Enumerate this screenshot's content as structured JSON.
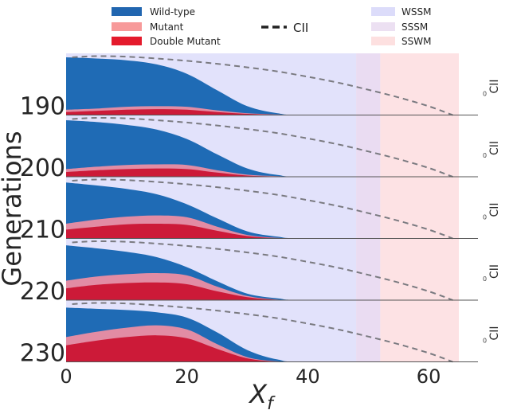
{
  "chart_data": {
    "type": "area",
    "title": "",
    "xlabel_main": "X",
    "xlabel_sub": "f",
    "ylabel": "Generations",
    "xlim": [
      0,
      65
    ],
    "x_ticks": [
      0,
      20,
      40,
      60
    ],
    "x_tick_labels": [
      "0",
      "20",
      "40",
      "60"
    ],
    "legend": {
      "placement": "top",
      "area_items": [
        {
          "label": "Wild-type",
          "color": "#2166b0"
        },
        {
          "label": "Mutant",
          "color": "#f79a9a"
        },
        {
          "label": "Double Mutant",
          "color": "#e41a2c"
        }
      ],
      "line_item": {
        "label": "CII",
        "color": "#222222"
      },
      "region_items": [
        {
          "label": "WSSM",
          "color": "#dcdcfa"
        },
        {
          "label": "SSSM",
          "color": "#ece0f2"
        },
        {
          "label": "SSWM",
          "color": "#fde0e0"
        }
      ]
    },
    "regimes": [
      {
        "name": "WSSM",
        "x_range": [
          0,
          48
        ],
        "color": "#e2e2fb"
      },
      {
        "name": "SSSM",
        "x_range": [
          48,
          52
        ],
        "color": "#eadcf2"
      },
      {
        "name": "SSWM",
        "x_range": [
          52,
          65
        ],
        "color": "#fde2e4"
      }
    ],
    "stack_colors": {
      "double_mutant": "#cc1a38",
      "mutant": "#e28ca4",
      "wild_type": "#1f6bb5"
    },
    "cii_line": {
      "label": "CII",
      "color": "#7a7a80",
      "style": "dashed",
      "axis_tick_label": "0",
      "x": [
        1,
        5,
        10,
        15,
        20,
        25,
        30,
        35,
        40,
        45,
        50,
        55,
        60,
        64
      ],
      "y": [
        0.98,
        1.0,
        0.99,
        0.96,
        0.92,
        0.87,
        0.81,
        0.74,
        0.65,
        0.55,
        0.43,
        0.3,
        0.15,
        0.0
      ]
    },
    "panels": [
      {
        "generation": "190",
        "x": [
          0,
          5,
          10,
          15,
          20,
          25,
          30,
          35,
          40,
          65
        ],
        "double_mutant": [
          0.05,
          0.07,
          0.09,
          0.1,
          0.09,
          0.05,
          0.02,
          0.005,
          0.0,
          0.0
        ],
        "mutant": [
          0.04,
          0.04,
          0.05,
          0.05,
          0.05,
          0.03,
          0.01,
          0.005,
          0.0,
          0.0
        ],
        "wild_type": [
          0.98,
          0.96,
          0.93,
          0.86,
          0.7,
          0.42,
          0.15,
          0.03,
          0.0,
          0.0
        ]
      },
      {
        "generation": "200",
        "x": [
          0,
          5,
          10,
          15,
          20,
          25,
          30,
          35,
          40,
          65
        ],
        "double_mutant": [
          0.08,
          0.11,
          0.13,
          0.14,
          0.13,
          0.07,
          0.02,
          0.005,
          0.0,
          0.0
        ],
        "mutant": [
          0.05,
          0.06,
          0.07,
          0.07,
          0.07,
          0.04,
          0.015,
          0.005,
          0.0,
          0.0
        ],
        "wild_type": [
          0.96,
          0.93,
          0.88,
          0.8,
          0.64,
          0.38,
          0.14,
          0.03,
          0.0,
          0.0
        ]
      },
      {
        "generation": "210",
        "x": [
          0,
          5,
          10,
          15,
          20,
          25,
          30,
          35,
          40,
          65
        ],
        "double_mutant": [
          0.15,
          0.2,
          0.24,
          0.25,
          0.23,
          0.13,
          0.04,
          0.005,
          0.0,
          0.0
        ],
        "mutant": [
          0.1,
          0.12,
          0.13,
          0.14,
          0.13,
          0.07,
          0.02,
          0.005,
          0.0,
          0.0
        ],
        "wild_type": [
          0.95,
          0.9,
          0.84,
          0.75,
          0.58,
          0.34,
          0.12,
          0.03,
          0.0,
          0.0
        ]
      },
      {
        "generation": "220",
        "x": [
          0,
          5,
          10,
          15,
          20,
          25,
          30,
          35,
          40,
          65
        ],
        "double_mutant": [
          0.2,
          0.26,
          0.29,
          0.3,
          0.27,
          0.15,
          0.05,
          0.005,
          0.0,
          0.0
        ],
        "mutant": [
          0.13,
          0.14,
          0.15,
          0.16,
          0.15,
          0.08,
          0.02,
          0.005,
          0.0,
          0.0
        ],
        "wild_type": [
          0.93,
          0.88,
          0.82,
          0.73,
          0.56,
          0.32,
          0.11,
          0.03,
          0.0,
          0.0
        ]
      },
      {
        "generation": "230",
        "x": [
          0,
          5,
          10,
          15,
          20,
          25,
          30,
          35,
          40,
          65
        ],
        "double_mutant": [
          0.28,
          0.36,
          0.42,
          0.45,
          0.4,
          0.22,
          0.06,
          0.005,
          0.0,
          0.0
        ],
        "mutant": [
          0.14,
          0.15,
          0.16,
          0.17,
          0.15,
          0.08,
          0.02,
          0.005,
          0.0,
          0.0
        ],
        "wild_type": [
          0.92,
          0.9,
          0.88,
          0.84,
          0.75,
          0.5,
          0.2,
          0.04,
          0.0,
          0.0
        ]
      }
    ]
  }
}
